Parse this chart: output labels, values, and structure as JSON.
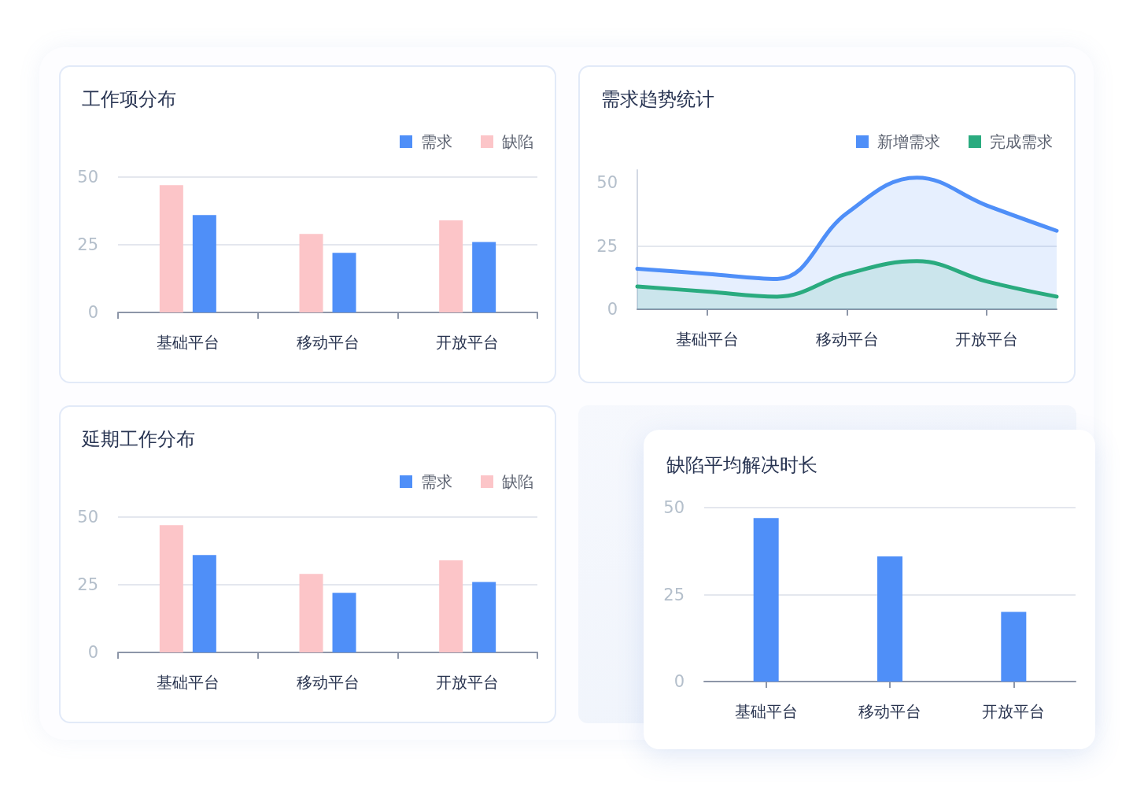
{
  "chart_data": [
    {
      "type": "bar",
      "title": "工作项分布",
      "categories": [
        "基础平台",
        "移动平台",
        "开放平台"
      ],
      "series": [
        {
          "name": "缺陷",
          "color": "#fcc5c8",
          "values": [
            47,
            29,
            34
          ]
        },
        {
          "name": "需求",
          "color": "#4f8ff8",
          "values": [
            36,
            22,
            26
          ]
        }
      ],
      "ylim": [
        0,
        50
      ],
      "yticks": [
        0,
        25,
        50
      ],
      "grid": "y",
      "legend": "top right"
    },
    {
      "type": "area",
      "title": "需求趋势统计",
      "categories": [
        null,
        "基础平台",
        null,
        "移动平台",
        null,
        "开放平台",
        null
      ],
      "series": [
        {
          "name": "新增需求",
          "color": "#4f8ff8",
          "values": [
            16,
            14,
            12,
            38,
            52,
            41,
            31
          ]
        },
        {
          "name": "完成需求",
          "color": "#2aab7f",
          "values": [
            9,
            7,
            5,
            14,
            19,
            11,
            5
          ]
        }
      ],
      "ylim": [
        0,
        55
      ],
      "yticks": [
        0,
        25,
        50
      ],
      "grid": "y",
      "legend": "top right",
      "marker": "none"
    },
    {
      "type": "bar",
      "title": "延期工作分布",
      "categories": [
        "基础平台",
        "移动平台",
        "开放平台"
      ],
      "series": [
        {
          "name": "缺陷",
          "color": "#fcc5c8",
          "values": [
            47,
            29,
            34
          ]
        },
        {
          "name": "需求",
          "color": "#4f8ff8",
          "values": [
            36,
            22,
            26
          ]
        }
      ],
      "ylim": [
        0,
        50
      ],
      "yticks": [
        0,
        25,
        50
      ],
      "grid": "y",
      "legend": "top right"
    },
    {
      "type": "bar",
      "title": "缺陷平均解决时长",
      "categories": [
        "基础平台",
        "移动平台",
        "开放平台"
      ],
      "values": [
        47,
        36,
        20
      ],
      "color": "#4f8ff8",
      "ylim": [
        0,
        50
      ],
      "yticks": [
        0,
        25,
        50
      ],
      "grid": "y"
    }
  ]
}
